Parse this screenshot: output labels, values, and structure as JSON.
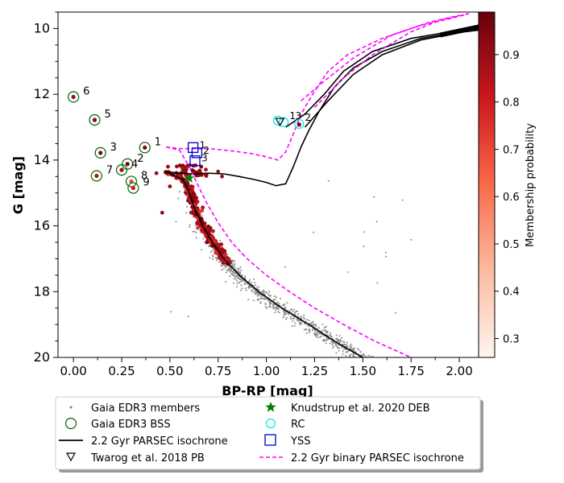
{
  "chart_data": {
    "type": "scatter",
    "xlabel": "BP-RP [mag]",
    "ylabel": "G [mag]",
    "xlim": [
      -0.08,
      2.1
    ],
    "ylim": [
      20,
      9.5
    ],
    "xticks": [
      "0.00",
      "0.25",
      "0.50",
      "0.75",
      "1.00",
      "1.25",
      "1.50",
      "1.75",
      "2.00"
    ],
    "yticks": [
      "10",
      "12",
      "14",
      "16",
      "18",
      "20"
    ],
    "colorbar": {
      "label": "Membership probability",
      "range": [
        0.26,
        0.99
      ],
      "ticks": [
        "0.3",
        "0.4",
        "0.5",
        "0.6",
        "0.7",
        "0.8",
        "0.9"
      ],
      "colormap": [
        "#fff5f0",
        "#fcbba1",
        "#fb6a4a",
        "#cb181d",
        "#67000d"
      ]
    },
    "bss": [
      {
        "id": "1",
        "x": 0.37,
        "y": 13.62,
        "p": 0.95
      },
      {
        "id": "2",
        "x": 0.28,
        "y": 14.12,
        "p": 0.95
      },
      {
        "id": "3",
        "x": 0.14,
        "y": 13.78,
        "p": 0.95
      },
      {
        "id": "4",
        "x": 0.25,
        "y": 14.3,
        "p": 0.9
      },
      {
        "id": "5",
        "x": 0.11,
        "y": 12.78,
        "p": 0.95
      },
      {
        "id": "6",
        "x": 0.0,
        "y": 12.08,
        "p": 0.9
      },
      {
        "id": "7",
        "x": 0.12,
        "y": 14.48,
        "p": 0.85
      },
      {
        "id": "8",
        "x": 0.3,
        "y": 14.65,
        "p": 0.7
      },
      {
        "id": "9",
        "x": 0.31,
        "y": 14.85,
        "p": 0.8
      }
    ],
    "yss": [
      {
        "id": "1",
        "x": 0.62,
        "y": 13.62
      },
      {
        "id": "2",
        "x": 0.64,
        "y": 13.78
      },
      {
        "id": "3",
        "x": 0.63,
        "y": 14.02
      }
    ],
    "rc": [
      {
        "id": "1",
        "x": 1.09,
        "y": 12.85
      },
      {
        "id": "2",
        "x": 1.17,
        "y": 12.9
      },
      {
        "id": "3",
        "x": 1.06,
        "y": 12.8
      }
    ],
    "deb": {
      "x": 0.6,
      "y": 14.55
    },
    "pb": {
      "x": 1.07,
      "y": 12.83
    },
    "isochrone": [
      [
        0.48,
        14.35
      ],
      [
        0.55,
        14.4
      ],
      [
        0.63,
        14.42
      ],
      [
        0.7,
        14.4
      ],
      [
        0.78,
        14.42
      ],
      [
        0.86,
        14.5
      ],
      [
        0.93,
        14.58
      ],
      [
        1.0,
        14.68
      ],
      [
        1.05,
        14.78
      ],
      [
        1.1,
        14.72
      ],
      [
        1.14,
        14.2
      ],
      [
        1.18,
        13.6
      ],
      [
        1.22,
        13.1
      ],
      [
        1.27,
        12.55
      ],
      [
        1.35,
        11.8
      ],
      [
        1.45,
        11.2
      ],
      [
        1.6,
        10.7
      ],
      [
        1.8,
        10.3
      ],
      [
        2.0,
        10.1
      ],
      [
        2.1,
        10.02
      ]
    ],
    "isochrone_ms": [
      [
        0.48,
        14.35
      ],
      [
        0.57,
        14.6
      ],
      [
        0.6,
        15.0
      ],
      [
        0.63,
        15.5
      ],
      [
        0.67,
        16.0
      ],
      [
        0.72,
        16.5
      ],
      [
        0.78,
        17.0
      ],
      [
        0.86,
        17.5
      ],
      [
        0.96,
        18.0
      ],
      [
        1.08,
        18.5
      ],
      [
        1.22,
        19.0
      ],
      [
        1.35,
        19.5
      ],
      [
        1.5,
        20.0
      ]
    ],
    "isochrone_rgb2": [
      [
        1.1,
        13.0
      ],
      [
        1.2,
        12.6
      ],
      [
        1.3,
        12.0
      ],
      [
        1.4,
        11.3
      ],
      [
        1.55,
        10.7
      ],
      [
        1.75,
        10.3
      ],
      [
        1.95,
        10.1
      ],
      [
        2.1,
        10.0
      ]
    ],
    "isochrone_rgb3": [
      [
        1.2,
        13.0
      ],
      [
        1.32,
        12.2
      ],
      [
        1.45,
        11.4
      ],
      [
        1.6,
        10.8
      ],
      [
        1.8,
        10.35
      ],
      [
        2.0,
        10.12
      ],
      [
        2.1,
        10.05
      ]
    ],
    "binary_isochrone": [
      [
        0.48,
        13.6
      ],
      [
        0.55,
        13.65
      ],
      [
        0.63,
        13.65
      ],
      [
        0.72,
        13.66
      ],
      [
        0.82,
        13.72
      ],
      [
        0.92,
        13.8
      ],
      [
        1.0,
        13.9
      ],
      [
        1.06,
        14.0
      ],
      [
        1.1,
        13.75
      ],
      [
        1.14,
        13.2
      ],
      [
        1.18,
        12.6
      ],
      [
        1.24,
        12.0
      ],
      [
        1.32,
        11.3
      ],
      [
        1.42,
        10.8
      ],
      [
        1.6,
        10.3
      ],
      [
        1.8,
        9.9
      ],
      [
        1.95,
        9.7
      ],
      [
        2.05,
        9.55
      ]
    ],
    "binary_isochrone_ms": [
      [
        0.48,
        13.6
      ],
      [
        0.55,
        13.7
      ],
      [
        0.6,
        14.2
      ],
      [
        0.64,
        14.7
      ],
      [
        0.69,
        15.3
      ],
      [
        0.75,
        15.9
      ],
      [
        0.82,
        16.5
      ],
      [
        0.9,
        17.0
      ],
      [
        1.0,
        17.5
      ],
      [
        1.12,
        18.0
      ],
      [
        1.25,
        18.5
      ],
      [
        1.4,
        19.0
      ],
      [
        1.56,
        19.5
      ],
      [
        1.75,
        20.0
      ]
    ],
    "binary_isochrone_rgb2": [
      [
        1.18,
        12.2
      ],
      [
        1.3,
        11.6
      ],
      [
        1.45,
        10.9
      ],
      [
        1.65,
        10.2
      ],
      [
        1.85,
        9.8
      ],
      [
        2.0,
        9.6
      ]
    ],
    "binary_isochrone_rgb3": [
      [
        1.25,
        12.4
      ],
      [
        1.4,
        11.5
      ],
      [
        1.55,
        10.8
      ],
      [
        1.75,
        10.1
      ],
      [
        1.9,
        9.75
      ],
      [
        2.05,
        9.55
      ]
    ],
    "legend": {
      "members": "Gaia EDR3 members",
      "bss": "Gaia EDR3 BSS",
      "isochrone": "2.2 Gyr PARSEC isochrone",
      "pb": "Twarog et al. 2018 PB",
      "deb": "Knudstrup et al. 2020 DEB",
      "rc": "RC",
      "yss": "YSS",
      "binary": "2.2 Gyr binary PARSEC isochrone"
    }
  }
}
